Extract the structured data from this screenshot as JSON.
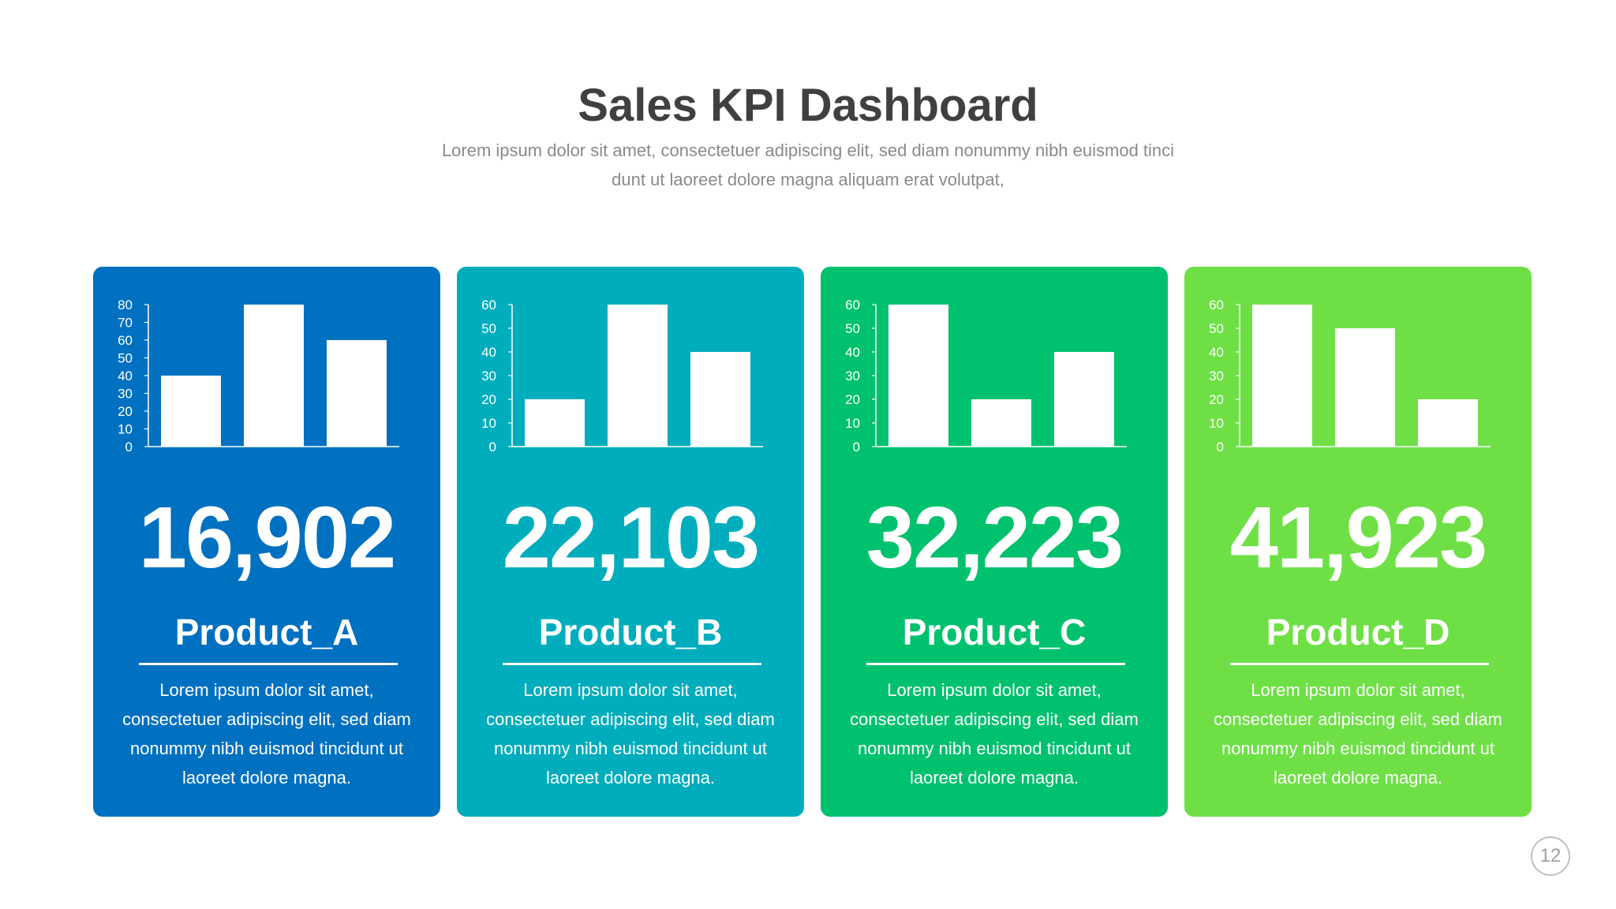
{
  "header": {
    "title": "Sales KPI Dashboard",
    "subtitle_line1": "Lorem ipsum dolor sit amet, consectetuer adipiscing elit, sed diam nonummy nibh euismod tinci",
    "subtitle_line2": "dunt ut laoreet dolore magna aliquam erat volutpat,"
  },
  "cards": [
    {
      "kpi": "16,902",
      "name": "Product_A",
      "desc_lines": [
        "Lorem ipsum dolor sit amet,",
        "consectetuer adipiscing elit, sed diam",
        "nonummy nibh euismod tincidunt ut",
        "laoreet dolore magna."
      ],
      "color": "#0070c0"
    },
    {
      "kpi": "22,103",
      "name": "Product_B",
      "desc_lines": [
        "Lorem ipsum dolor sit amet,",
        "consectetuer adipiscing elit, sed diam",
        "nonummy nibh euismod tincidunt ut",
        "laoreet dolore magna."
      ],
      "color": "#00adbd"
    },
    {
      "kpi": "32,223",
      "name": "Product_C",
      "desc_lines": [
        "Lorem ipsum dolor sit amet,",
        "consectetuer adipiscing elit, sed diam",
        "nonummy nibh euismod tincidunt ut",
        "laoreet dolore magna."
      ],
      "color": "#00c16e"
    },
    {
      "kpi": "41,923",
      "name": "Product_D",
      "desc_lines": [
        "Lorem ipsum dolor sit amet,",
        "consectetuer adipiscing elit, sed diam",
        "nonummy nibh euismod tincidunt ut",
        "laoreet dolore magna."
      ],
      "color": "#6ee046"
    }
  ],
  "chart_data": [
    {
      "type": "bar",
      "title": "Product_A",
      "values": [
        40,
        80,
        60
      ],
      "ylim": [
        0,
        80
      ],
      "yticks": [
        0,
        10,
        20,
        30,
        40,
        50,
        60,
        70,
        80
      ]
    },
    {
      "type": "bar",
      "title": "Product_B",
      "values": [
        20,
        60,
        40
      ],
      "ylim": [
        0,
        60
      ],
      "yticks": [
        0,
        10,
        20,
        30,
        40,
        50,
        60
      ]
    },
    {
      "type": "bar",
      "title": "Product_C",
      "values": [
        60,
        20,
        40
      ],
      "ylim": [
        0,
        60
      ],
      "yticks": [
        0,
        10,
        20,
        30,
        40,
        50,
        60
      ]
    },
    {
      "type": "bar",
      "title": "Product_D",
      "values": [
        60,
        50,
        20
      ],
      "ylim": [
        0,
        60
      ],
      "yticks": [
        0,
        10,
        20,
        30,
        40,
        50,
        60
      ]
    }
  ],
  "page_number": "12"
}
